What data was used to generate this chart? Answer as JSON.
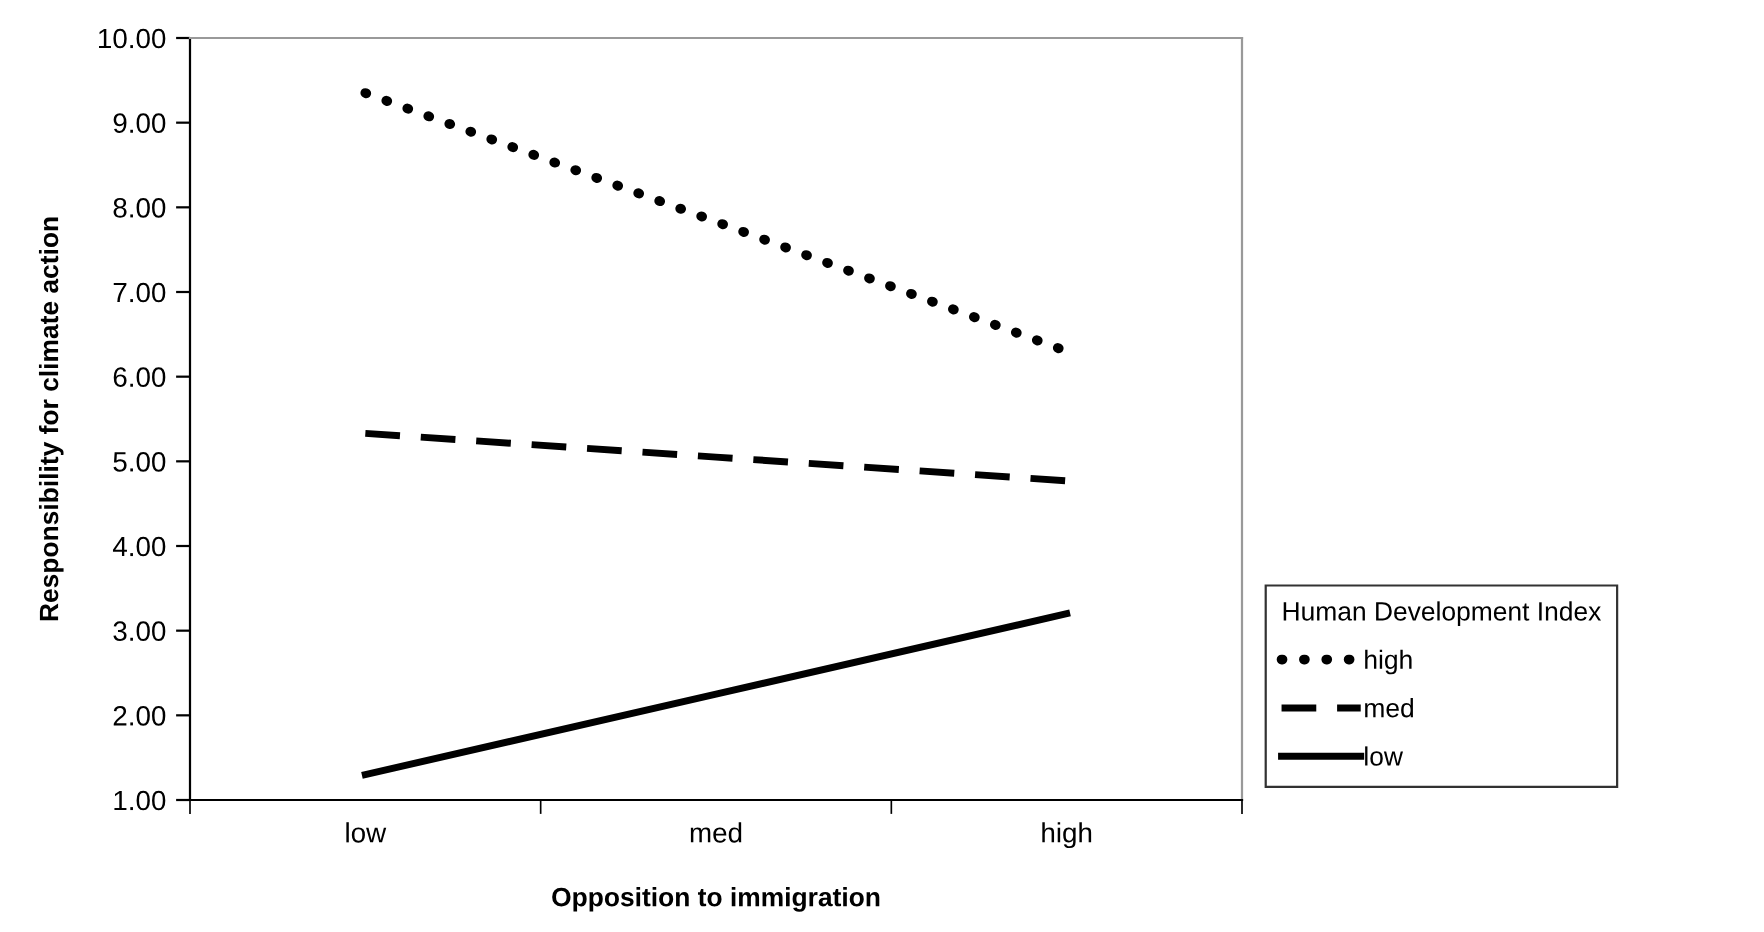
{
  "chart_data": {
    "type": "line",
    "xlabel": "Opposition to immigration",
    "ylabel": "Responsibility for climate action",
    "legend_title": "Human Development Index",
    "categories": [
      "low",
      "med",
      "high"
    ],
    "series": [
      {
        "name": "high",
        "color": "#000000",
        "line_style": "dotted",
        "values": [
          9.35,
          7.83,
          6.3
        ]
      },
      {
        "name": "med",
        "color": "#000000",
        "line_style": "dashed",
        "values": [
          5.33,
          5.05,
          4.77
        ]
      },
      {
        "name": "low",
        "color": "#000000",
        "line_style": "solid",
        "values": [
          1.3,
          2.25,
          3.2
        ]
      }
    ],
    "ylim": [
      1,
      10
    ],
    "yticks": [
      {
        "value": 1,
        "label": "1.00"
      },
      {
        "value": 2,
        "label": "2.00"
      },
      {
        "value": 3,
        "label": "3.00"
      },
      {
        "value": 4,
        "label": "4.00"
      },
      {
        "value": 5,
        "label": "5.00"
      },
      {
        "value": 6,
        "label": "6.00"
      },
      {
        "value": 7,
        "label": "7.00"
      },
      {
        "value": 8,
        "label": "8.00"
      },
      {
        "value": 9,
        "label": "9.00"
      },
      {
        "value": 10,
        "label": "10.00"
      }
    ],
    "grid": false,
    "legend": "right",
    "marker": "none"
  }
}
